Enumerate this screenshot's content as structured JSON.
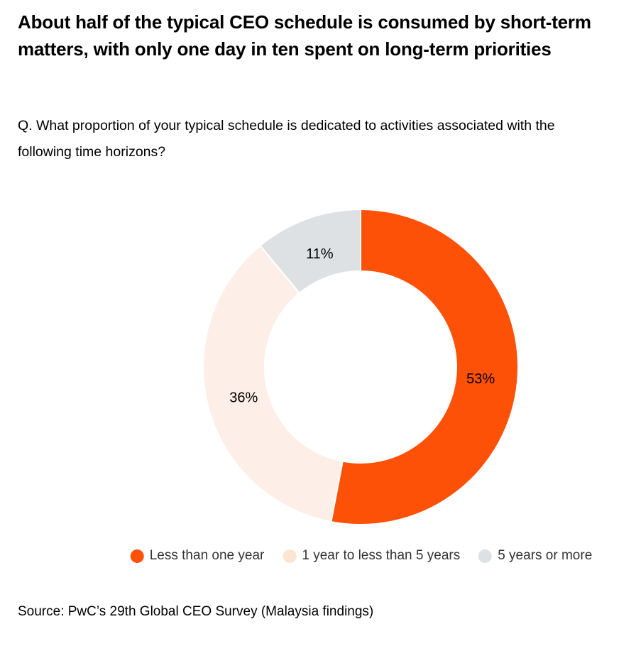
{
  "header": {
    "title": "About half of the typical CEO schedule is consumed by short-term matters, with only one day in ten spent on long-term priorities",
    "question": "Q. What proportion of your typical schedule is dedicated to activities associated with the following time horizons?"
  },
  "chart_data": {
    "type": "pie",
    "subtype": "donut",
    "title": "",
    "series": [
      {
        "name": "Less than one year",
        "value": 53,
        "label": "53%",
        "color": "#FD5108",
        "legend_color": "#FD5108"
      },
      {
        "name": "1 year to less than 5 years",
        "value": 36,
        "label": "36%",
        "color": "#FDEFE7",
        "legend_color": "#FCE5D0"
      },
      {
        "name": "5 years or more",
        "value": 11,
        "label": "11%",
        "color": "#DEE1E3",
        "legend_color": "#DEE1E3"
      }
    ],
    "start_angle_deg": 0,
    "direction": "clockwise",
    "inner_radius_ratio": 0.608,
    "segment_gap_color": "#FFFFFF",
    "labels_unit": "%",
    "legend_position": "bottom"
  },
  "footer": {
    "source": "Source: PwC’s 29th Global CEO Survey (Malaysia findings)"
  }
}
